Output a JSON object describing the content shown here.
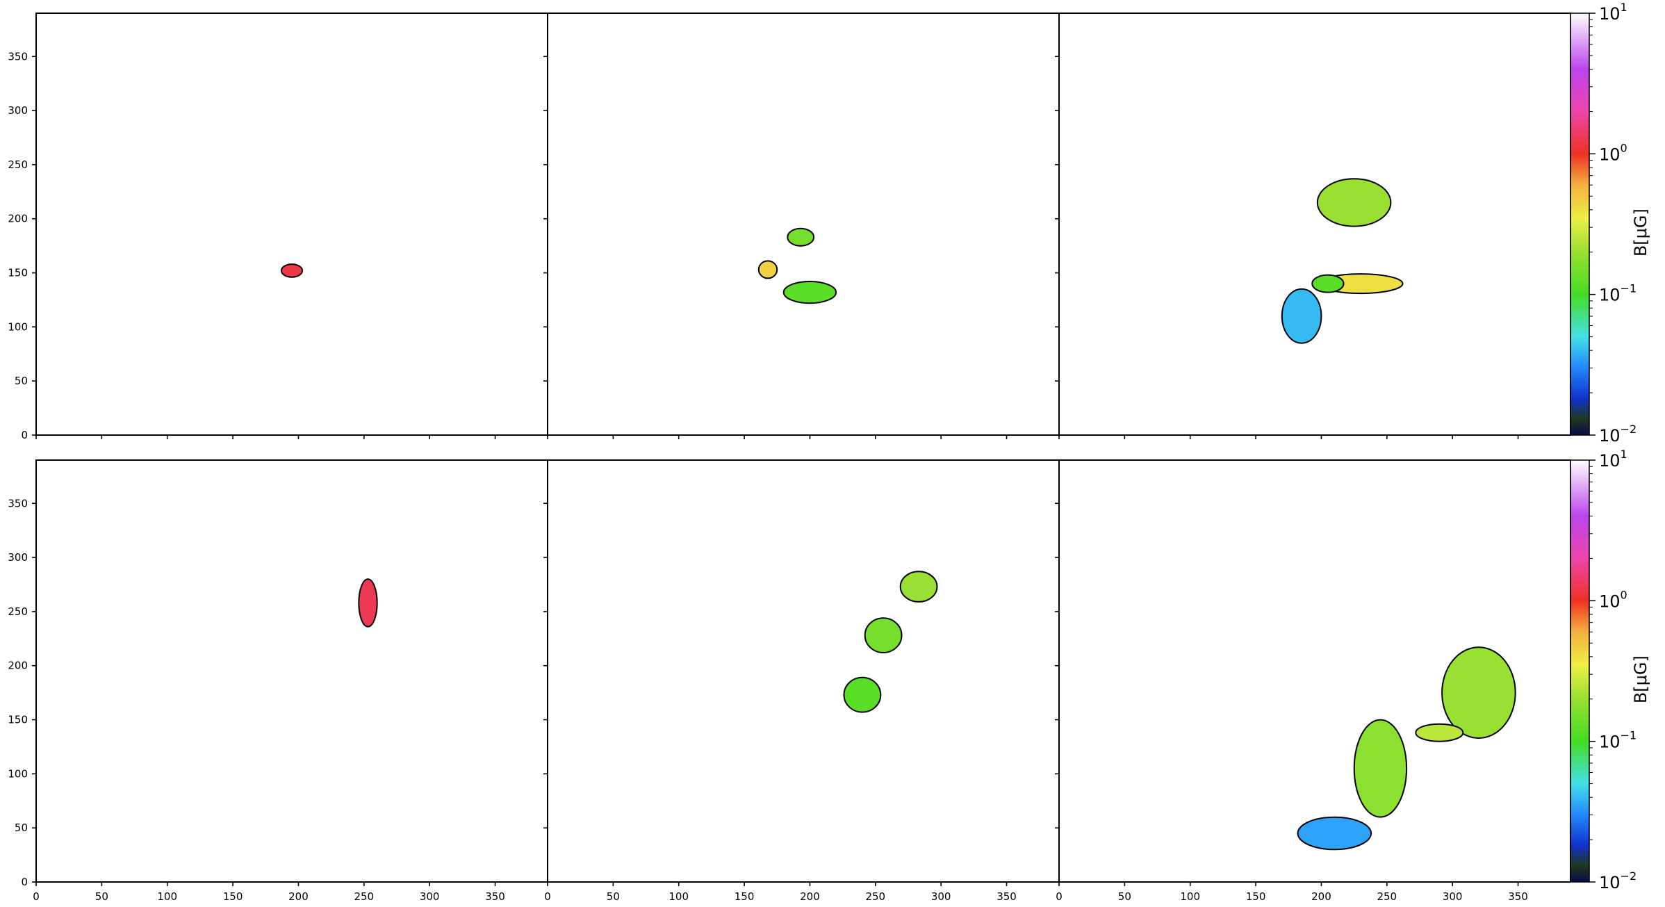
{
  "chart_data": {
    "type": "heatmap",
    "layout": {
      "rows": 2,
      "cols": 3,
      "shared_axes": true
    },
    "xlim": [
      0,
      390
    ],
    "ylim": [
      0,
      390
    ],
    "x_ticks": [
      "0",
      "50",
      "100",
      "150",
      "200",
      "250",
      "300",
      "350"
    ],
    "y_ticks": [
      "0",
      "50",
      "100",
      "150",
      "200",
      "250",
      "300",
      "350"
    ],
    "colorbar": {
      "label": "B[μG]",
      "scale": "log",
      "range": [
        0.01,
        10
      ],
      "tick_labels": [
        {
          "base": "10",
          "exp": "1",
          "value": 10
        },
        {
          "base": "10",
          "exp": "0",
          "value": 1
        },
        {
          "base": "10",
          "exp": "−1",
          "value": 0.1
        },
        {
          "base": "10",
          "exp": "−2",
          "value": 0.01
        }
      ],
      "colormap_stops": [
        {
          "value": 0.01,
          "color": "#0a0a4a"
        },
        {
          "value": 0.013,
          "color": "#1e3a1e"
        },
        {
          "value": 0.018,
          "color": "#1030c8"
        },
        {
          "value": 0.03,
          "color": "#2288ff"
        },
        {
          "value": 0.05,
          "color": "#44e0e8"
        },
        {
          "value": 0.1,
          "color": "#44dd22"
        },
        {
          "value": 0.2,
          "color": "#99e033"
        },
        {
          "value": 0.35,
          "color": "#eeee44"
        },
        {
          "value": 0.6,
          "color": "#f5b040"
        },
        {
          "value": 1.0,
          "color": "#ee3322"
        },
        {
          "value": 2.0,
          "color": "#ee44aa"
        },
        {
          "value": 4.0,
          "color": "#bb44ee"
        },
        {
          "value": 10.0,
          "color": "#ffffff"
        }
      ]
    },
    "panels": [
      {
        "row": 0,
        "col": 0,
        "blobs": [
          {
            "x": 195,
            "y": 152,
            "rx": 8,
            "ry": 6,
            "B": 1.2
          }
        ]
      },
      {
        "row": 0,
        "col": 1,
        "blobs": [
          {
            "x": 193,
            "y": 183,
            "rx": 10,
            "ry": 8,
            "B": 0.15
          },
          {
            "x": 168,
            "y": 153,
            "rx": 7,
            "ry": 8,
            "B": 0.45
          },
          {
            "x": 200,
            "y": 132,
            "rx": 20,
            "ry": 10,
            "B": 0.12
          }
        ]
      },
      {
        "row": 0,
        "col": 2,
        "blobs": [
          {
            "x": 225,
            "y": 215,
            "rx": 28,
            "ry": 22,
            "B": 0.2
          },
          {
            "x": 230,
            "y": 140,
            "rx": 32,
            "ry": 9,
            "B": 0.4
          },
          {
            "x": 185,
            "y": 110,
            "rx": 15,
            "ry": 25,
            "B": 0.04
          },
          {
            "x": 205,
            "y": 140,
            "rx": 12,
            "ry": 8,
            "B": 0.12
          }
        ]
      },
      {
        "row": 1,
        "col": 0,
        "blobs": [
          {
            "x": 253,
            "y": 258,
            "rx": 7,
            "ry": 22,
            "B": 1.3
          }
        ]
      },
      {
        "row": 1,
        "col": 1,
        "blobs": [
          {
            "x": 283,
            "y": 273,
            "rx": 14,
            "ry": 14,
            "B": 0.2
          },
          {
            "x": 256,
            "y": 228,
            "rx": 14,
            "ry": 16,
            "B": 0.15
          },
          {
            "x": 240,
            "y": 173,
            "rx": 14,
            "ry": 16,
            "B": 0.12
          }
        ]
      },
      {
        "row": 1,
        "col": 2,
        "blobs": [
          {
            "x": 320,
            "y": 175,
            "rx": 28,
            "ry": 42,
            "B": 0.2
          },
          {
            "x": 245,
            "y": 105,
            "rx": 20,
            "ry": 45,
            "B": 0.18
          },
          {
            "x": 210,
            "y": 45,
            "rx": 28,
            "ry": 15,
            "B": 0.035
          },
          {
            "x": 290,
            "y": 138,
            "rx": 18,
            "ry": 8,
            "B": 0.25
          }
        ]
      }
    ]
  }
}
